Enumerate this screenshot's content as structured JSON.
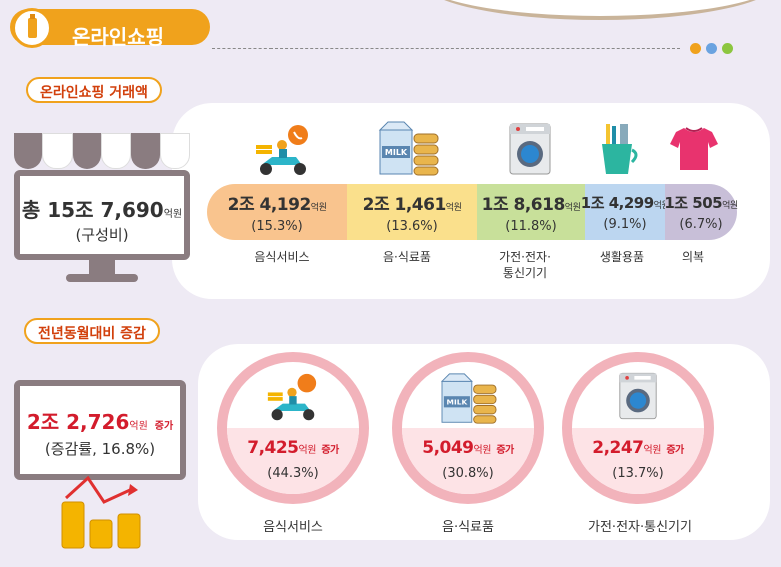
{
  "header": {
    "title": "온라인쇼핑"
  },
  "dots_colors": [
    "#f0a21c",
    "#6aa3e0",
    "#8cc63f"
  ],
  "section1": {
    "label": "온라인쇼핑 거래액",
    "total": {
      "prefix": "총 ",
      "value": "15조 7,690",
      "unit": "억원",
      "sub": "(구성비)"
    },
    "segments": [
      {
        "value": "2조 4,192",
        "unit": "억원",
        "pct": "(15.3%)",
        "label": "음식서비스",
        "color": "#f9c48e"
      },
      {
        "value": "2조 1,461",
        "unit": "억원",
        "pct": "(13.6%)",
        "label": "음·식료품",
        "color": "#fae08c"
      },
      {
        "value": "1조 8,618",
        "unit": "억원",
        "pct": "(11.8%)",
        "label_line1": "가전·전자·",
        "label_line2": "통신기기",
        "color": "#c8e09a"
      },
      {
        "value": "1조 4,299",
        "unit": "억원",
        "pct": "(9.1%)",
        "label": "생활용품",
        "color": "#bcd6f0"
      },
      {
        "value": "1조 505",
        "unit": "억원",
        "pct": "(6.7%)",
        "label": "의복",
        "color": "#c8bfd8"
      }
    ]
  },
  "section2": {
    "label": "전년동월대비 증감",
    "total": {
      "value": "2조 2,726",
      "unit": "억원",
      "suffix": "증가",
      "sub": "(증감률, 16.8%)"
    },
    "circles": [
      {
        "value": "7,425",
        "unit": "억원",
        "suffix": "증가",
        "pct": "(44.3%)",
        "label": "음식서비스"
      },
      {
        "value": "5,049",
        "unit": "억원",
        "suffix": "증가",
        "pct": "(30.8%)",
        "label": "음·식료품"
      },
      {
        "value": "2,247",
        "unit": "억원",
        "suffix": "증가",
        "pct": "(13.7%)",
        "label": "가전·전자·통신기기"
      }
    ]
  },
  "icons": [
    "delivery-scooter-icon",
    "milk-bread-icon",
    "washing-machine-icon",
    "toothbrush-cup-icon",
    "tshirt-icon",
    "coin-stacks-chart-icon"
  ]
}
